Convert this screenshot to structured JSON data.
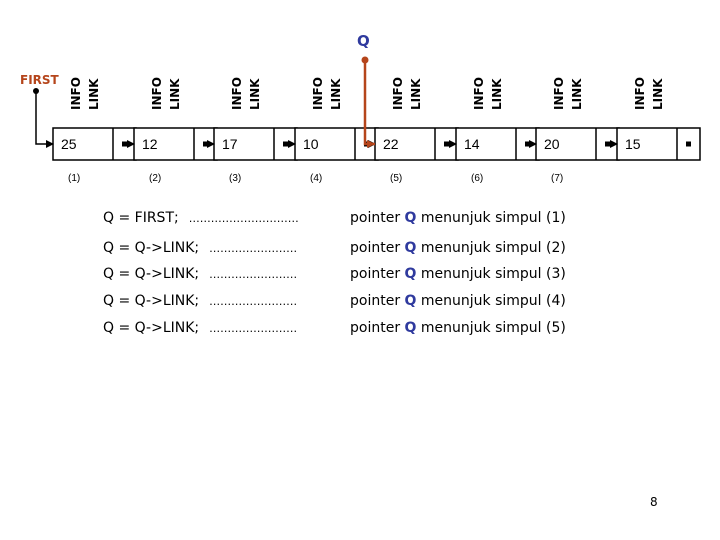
{
  "pointer_q_label": "Q",
  "first_label": "FIRST",
  "field_labels": {
    "info": "INFO",
    "link": "LINK"
  },
  "colors": {
    "pointer": "#b5451b",
    "q_text": "#2f3a9e"
  },
  "nodes": [
    {
      "value": "25",
      "index": "(1)"
    },
    {
      "value": "12",
      "index": "(2)"
    },
    {
      "value": "17",
      "index": "(3)"
    },
    {
      "value": "10",
      "index": "(4)"
    },
    {
      "value": "22",
      "index": "(5)"
    },
    {
      "value": "14",
      "index": "(6)"
    },
    {
      "value": "20",
      "index": "(7)"
    },
    {
      "value": "15",
      "index": ""
    }
  ],
  "q_points_to_node": 5,
  "statements": [
    {
      "code": "Q = FIRST;",
      "dots": "…………………………",
      "desc_prefix": "pointer",
      "desc_q": "Q",
      "desc_suffix": "menunjuk simpul (1)"
    },
    {
      "code": "Q = Q->LINK;",
      "dots": "……………………",
      "desc_prefix": "pointer",
      "desc_q": "Q",
      "desc_suffix": "menunjuk simpul (2)"
    },
    {
      "code": "Q = Q->LINK;",
      "dots": "……………………",
      "desc_prefix": "pointer",
      "desc_q": "Q",
      "desc_suffix": "menunjuk simpul (3)"
    },
    {
      "code": "Q = Q->LINK;",
      "dots": "……………………",
      "desc_prefix": "pointer",
      "desc_q": "Q",
      "desc_suffix": "menunjuk simpul (4)"
    },
    {
      "code": "Q = Q->LINK;",
      "dots": "……………………",
      "desc_prefix": "pointer",
      "desc_q": "Q",
      "desc_suffix": "menunjuk simpul (5)"
    }
  ],
  "page_number": "8"
}
